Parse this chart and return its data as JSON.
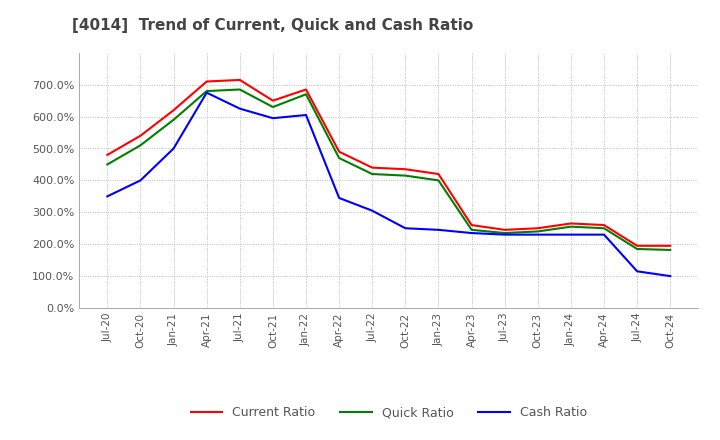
{
  "title": "[4014]  Trend of Current, Quick and Cash Ratio",
  "ylim": [
    0.0,
    8.0
  ],
  "yticks": [
    0.0,
    1.0,
    2.0,
    3.0,
    4.0,
    5.0,
    6.0,
    7.0
  ],
  "ytick_labels": [
    "0.0%",
    "100.0%",
    "200.0%",
    "300.0%",
    "400.0%",
    "500.0%",
    "600.0%",
    "700.0%"
  ],
  "background_color": "#ffffff",
  "grid_color": "#aaaaaa",
  "current_ratio_color": "#ff0000",
  "quick_ratio_color": "#008000",
  "cash_ratio_color": "#0000ff",
  "current_ratio": [
    4.8,
    5.4,
    6.2,
    7.1,
    7.15,
    6.5,
    6.85,
    4.9,
    4.4,
    4.35,
    4.2,
    2.6,
    2.45,
    2.5,
    2.65,
    2.6,
    1.95,
    1.95
  ],
  "quick_ratio": [
    4.5,
    5.1,
    5.9,
    6.8,
    6.85,
    6.3,
    6.7,
    4.7,
    4.2,
    4.15,
    4.0,
    2.45,
    2.35,
    2.4,
    2.55,
    2.5,
    1.85,
    1.82
  ],
  "cash_ratio": [
    3.5,
    4.0,
    5.0,
    6.75,
    6.25,
    5.95,
    6.05,
    3.45,
    3.05,
    2.5,
    2.45,
    2.35,
    2.3,
    2.3,
    2.3,
    2.3,
    1.15,
    1.0
  ],
  "xtick_labels": [
    "Jul-20",
    "Oct-20",
    "Jan-21",
    "Apr-21",
    "Jul-21",
    "Oct-21",
    "Jan-22",
    "Apr-22",
    "Jul-22",
    "Oct-22",
    "Jan-23",
    "Apr-23",
    "Jul-23",
    "Oct-23",
    "Jan-24",
    "Apr-24",
    "Jul-24",
    "Oct-24"
  ]
}
